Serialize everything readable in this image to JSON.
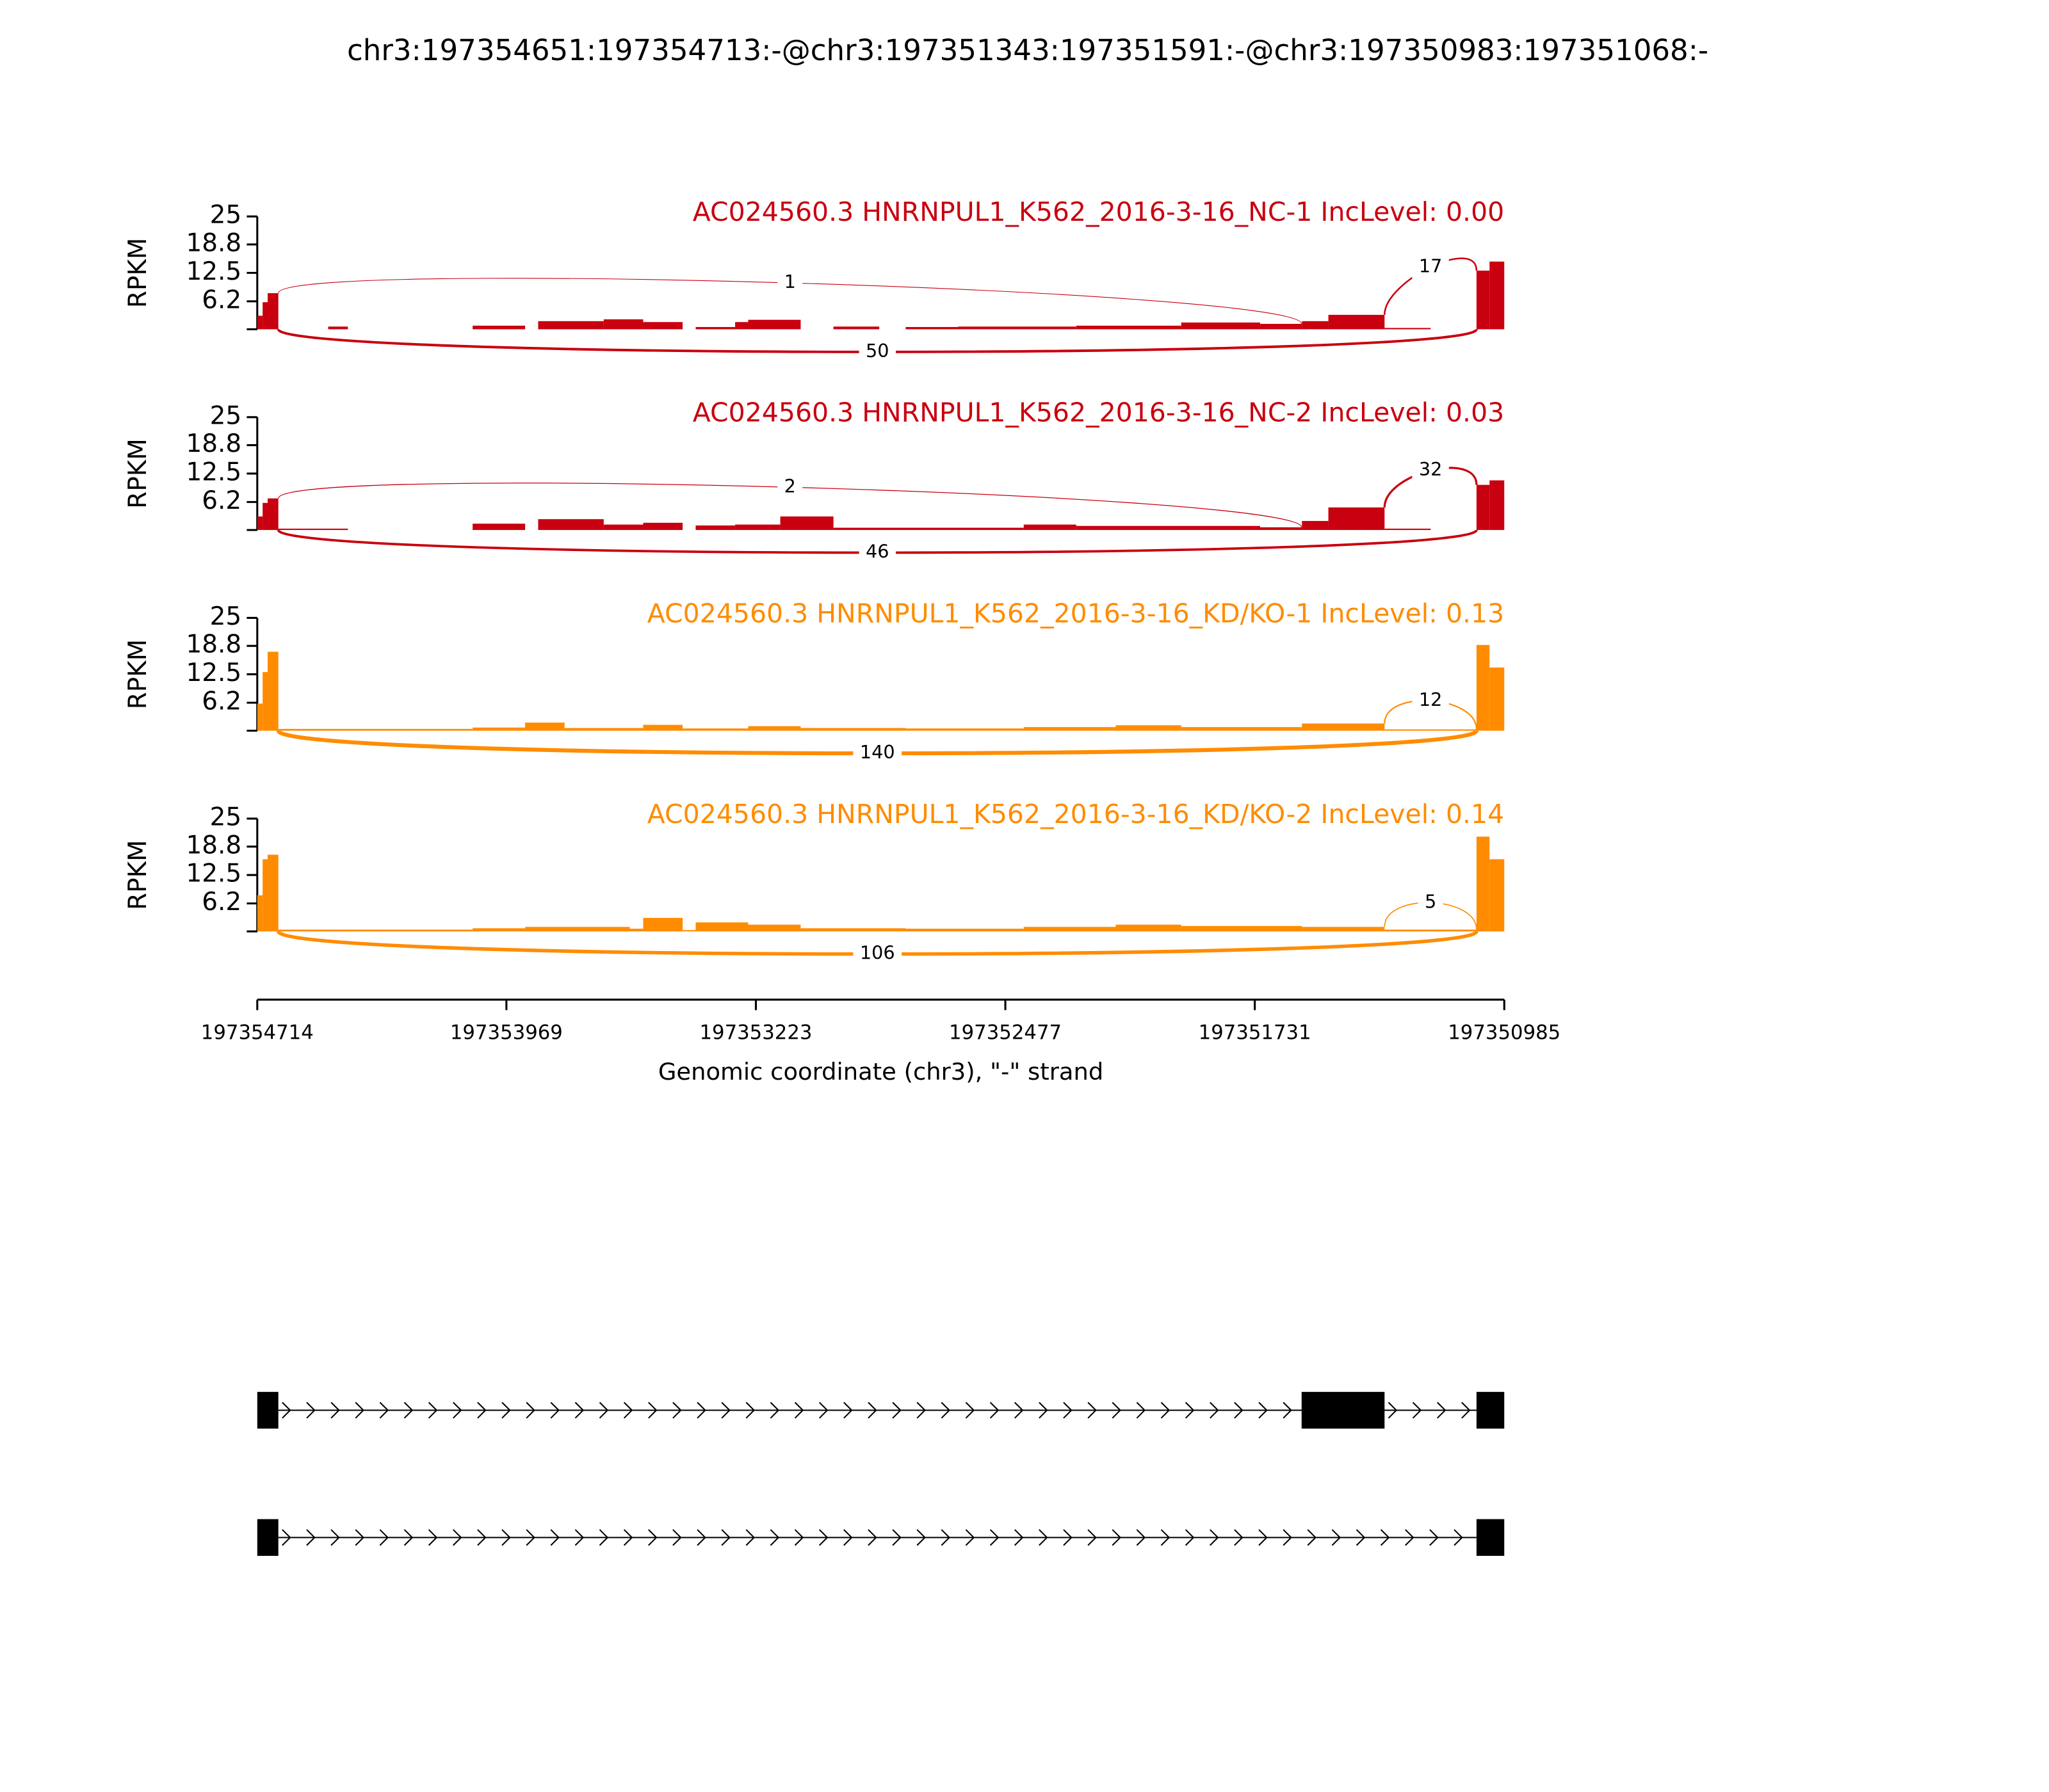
{
  "chart_data": {
    "type": "sashimi",
    "title": "chr3:197354651:197354713:-@chr3:197351343:197351591:-@chr3:197350983:197351068:-",
    "xlim": [
      197354714,
      197350985
    ],
    "xticks": [
      197354714,
      197353969,
      197353223,
      197352477,
      197351731,
      197350985
    ],
    "xlabel": "Genomic coordinate (chr3), \"-\" strand",
    "panels": [
      {
        "title": "AC024560.3 HNRNPUL1_K562_2016-3-16_NC-1 IncLevel: 0.00",
        "color": "#c8000f",
        "ylabel": "RPKM",
        "ylim": [
          0,
          25
        ],
        "yticks": [
          6.2,
          12.5,
          18.8,
          25
        ],
        "coverage": [
          [
            197354714,
            197354698,
            3
          ],
          [
            197354698,
            197354683,
            6
          ],
          [
            197354683,
            197354651,
            8
          ],
          [
            197354502,
            197354443,
            0.6
          ],
          [
            197354070,
            197353913,
            0.8
          ],
          [
            197353874,
            197353678,
            1.8
          ],
          [
            197353678,
            197353560,
            2.2
          ],
          [
            197353560,
            197353442,
            1.6
          ],
          [
            197353403,
            197353285,
            0.5
          ],
          [
            197353285,
            197353246,
            1.6
          ],
          [
            197353246,
            197353089,
            2.1
          ],
          [
            197352991,
            197352854,
            0.6
          ],
          [
            197352775,
            197352618,
            0.5
          ],
          [
            197352618,
            197352265,
            0.6
          ],
          [
            197352265,
            197351951,
            0.8
          ],
          [
            197351951,
            197351715,
            1.5
          ],
          [
            197351715,
            197351590,
            1.2
          ],
          [
            197351590,
            197351511,
            1.8
          ],
          [
            197351511,
            197351343,
            3.2
          ],
          [
            197351343,
            197351205,
            0.3
          ],
          [
            197351068,
            197351029,
            13
          ],
          [
            197351029,
            197350985,
            15
          ]
        ],
        "junctions": [
          {
            "start": 197354651,
            "end": 197351591,
            "count": 1
          },
          {
            "start": 197351343,
            "end": 197351068,
            "count": 17
          },
          {
            "start": 197354651,
            "end": 197351068,
            "count": 50
          }
        ]
      },
      {
        "title": "AC024560.3 HNRNPUL1_K562_2016-3-16_NC-2 IncLevel: 0.03",
        "color": "#c8000f",
        "ylabel": "RPKM",
        "ylim": [
          0,
          25
        ],
        "yticks": [
          6.2,
          12.5,
          18.8,
          25
        ],
        "coverage": [
          [
            197354714,
            197354698,
            3
          ],
          [
            197354698,
            197354683,
            6
          ],
          [
            197354683,
            197354651,
            7
          ],
          [
            197354651,
            197354443,
            0.3
          ],
          [
            197354070,
            197353913,
            1.4
          ],
          [
            197353874,
            197353678,
            2.4
          ],
          [
            197353678,
            197353560,
            1.2
          ],
          [
            197353560,
            197353442,
            1.6
          ],
          [
            197353403,
            197353285,
            1
          ],
          [
            197353285,
            197353150,
            1.2
          ],
          [
            197353150,
            197352991,
            3
          ],
          [
            197352991,
            197352422,
            0.5
          ],
          [
            197352422,
            197352265,
            1.2
          ],
          [
            197352265,
            197351715,
            0.9
          ],
          [
            197351715,
            197351590,
            0.6
          ],
          [
            197351590,
            197351511,
            2
          ],
          [
            197351511,
            197351343,
            5
          ],
          [
            197351343,
            197351205,
            0.3
          ],
          [
            197351068,
            197351029,
            10
          ],
          [
            197351029,
            197350985,
            11
          ]
        ],
        "junctions": [
          {
            "start": 197354651,
            "end": 197351591,
            "count": 2
          },
          {
            "start": 197351343,
            "end": 197351068,
            "count": 32
          },
          {
            "start": 197354651,
            "end": 197351068,
            "count": 46
          }
        ]
      },
      {
        "title": "AC024560.3 HNRNPUL1_K562_2016-3-16_KD/KO-1 IncLevel: 0.13",
        "color": "#ff8c00",
        "ylabel": "RPKM",
        "ylim": [
          0,
          25
        ],
        "yticks": [
          6.2,
          12.5,
          18.8,
          25
        ],
        "coverage": [
          [
            197354714,
            197354698,
            6
          ],
          [
            197354698,
            197354683,
            13
          ],
          [
            197354683,
            197354651,
            17.5
          ],
          [
            197354651,
            197354070,
            0.4
          ],
          [
            197354070,
            197353913,
            0.7
          ],
          [
            197353913,
            197353795,
            1.8
          ],
          [
            197353795,
            197353560,
            0.6
          ],
          [
            197353560,
            197353442,
            1.3
          ],
          [
            197353442,
            197353246,
            0.5
          ],
          [
            197353246,
            197353089,
            1
          ],
          [
            197353089,
            197352775,
            0.6
          ],
          [
            197352775,
            197352422,
            0.5
          ],
          [
            197352422,
            197352147,
            0.8
          ],
          [
            197352147,
            197351951,
            1.2
          ],
          [
            197351951,
            197351590,
            0.8
          ],
          [
            197351590,
            197351343,
            1.6
          ],
          [
            197351343,
            197351068,
            0.3
          ],
          [
            197351068,
            197351029,
            19
          ],
          [
            197351029,
            197350985,
            14
          ]
        ],
        "junctions": [
          {
            "start": 197351343,
            "end": 197351068,
            "count": 12
          },
          {
            "start": 197354651,
            "end": 197351068,
            "count": 140
          }
        ]
      },
      {
        "title": "AC024560.3 HNRNPUL1_K562_2016-3-16_KD/KO-2 IncLevel: 0.14",
        "color": "#ff8c00",
        "ylabel": "RPKM",
        "ylim": [
          0,
          25
        ],
        "yticks": [
          6.2,
          12.5,
          18.8,
          25
        ],
        "coverage": [
          [
            197354714,
            197354698,
            8
          ],
          [
            197354698,
            197354683,
            16
          ],
          [
            197354683,
            197354651,
            17
          ],
          [
            197354651,
            197354070,
            0.4
          ],
          [
            197354070,
            197353913,
            0.7
          ],
          [
            197353913,
            197353600,
            1
          ],
          [
            197353600,
            197353560,
            0.6
          ],
          [
            197353560,
            197353442,
            3
          ],
          [
            197353442,
            197353403,
            0.3
          ],
          [
            197353403,
            197353246,
            2
          ],
          [
            197353246,
            197353089,
            1.5
          ],
          [
            197353089,
            197352775,
            0.7
          ],
          [
            197352775,
            197352422,
            0.6
          ],
          [
            197352422,
            197352147,
            1
          ],
          [
            197352147,
            197351951,
            1.5
          ],
          [
            197351951,
            197351590,
            1.2
          ],
          [
            197351590,
            197351343,
            1
          ],
          [
            197351343,
            197351068,
            0.4
          ],
          [
            197351068,
            197351029,
            21
          ],
          [
            197351029,
            197350985,
            16
          ]
        ],
        "junctions": [
          {
            "start": 197351343,
            "end": 197351068,
            "count": 5
          },
          {
            "start": 197354651,
            "end": 197351068,
            "count": 106
          }
        ]
      }
    ],
    "transcripts": [
      {
        "exons": [
          [
            197354714,
            197354651
          ],
          [
            197351591,
            197351343
          ],
          [
            197351068,
            197350985
          ]
        ]
      },
      {
        "exons": [
          [
            197354714,
            197354651
          ],
          [
            197351068,
            197350985
          ]
        ]
      }
    ]
  }
}
